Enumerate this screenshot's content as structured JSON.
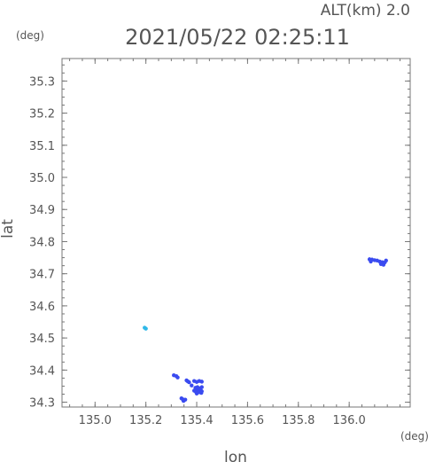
{
  "header": {
    "alt_label": "ALT(km) 2.0",
    "timestamp": "2021/05/22 02:25:11",
    "y_unit": "(deg)",
    "x_unit": "(deg)"
  },
  "chart_data": {
    "type": "scatter",
    "xlabel": "lon",
    "ylabel": "lat",
    "xlim": [
      134.87,
      136.24
    ],
    "ylim": [
      34.285,
      35.37
    ],
    "x_ticks": [
      "135.0",
      "135.2",
      "135.4",
      "135.6",
      "135.8",
      "136.0"
    ],
    "y_ticks": [
      "34.3",
      "34.4",
      "34.5",
      "34.6",
      "34.7",
      "34.8",
      "34.9",
      "35.0",
      "35.1",
      "35.2",
      "35.3"
    ],
    "grid": false,
    "colors": {
      "axis": "#777777",
      "text": "#555555",
      "points": "#3a4bf0",
      "highlight": "#2fb8e8"
    },
    "series": [
      {
        "color": "#3a4bf0",
        "points": [
          [
            136.08,
            34.745
          ],
          [
            136.09,
            34.744
          ],
          [
            136.1,
            34.742
          ],
          [
            136.11,
            34.741
          ],
          [
            136.12,
            34.738
          ],
          [
            136.13,
            34.736
          ],
          [
            136.14,
            34.735
          ],
          [
            136.125,
            34.73
          ],
          [
            136.135,
            34.728
          ],
          [
            136.085,
            34.738
          ],
          [
            136.145,
            34.741
          ],
          [
            135.31,
            34.384
          ],
          [
            135.32,
            34.381
          ],
          [
            135.325,
            34.377
          ],
          [
            135.36,
            34.368
          ],
          [
            135.365,
            34.365
          ],
          [
            135.37,
            34.362
          ],
          [
            135.39,
            34.366
          ],
          [
            135.4,
            34.363
          ],
          [
            135.41,
            34.366
          ],
          [
            135.42,
            34.364
          ],
          [
            135.38,
            34.352
          ],
          [
            135.395,
            34.345
          ],
          [
            135.4,
            34.341
          ],
          [
            135.405,
            34.338
          ],
          [
            135.41,
            34.336
          ],
          [
            135.415,
            34.339
          ],
          [
            135.42,
            34.334
          ],
          [
            135.397,
            34.332
          ],
          [
            135.408,
            34.331
          ],
          [
            135.418,
            34.329
          ],
          [
            135.4,
            34.327
          ],
          [
            135.412,
            34.343
          ],
          [
            135.403,
            34.347
          ],
          [
            135.42,
            34.347
          ],
          [
            135.39,
            34.336
          ],
          [
            135.34,
            34.312
          ],
          [
            135.345,
            34.309
          ],
          [
            135.35,
            34.306
          ],
          [
            135.355,
            34.308
          ],
          [
            135.348,
            34.304
          ]
        ]
      },
      {
        "color": "#2fb8e8",
        "points": [
          [
            135.195,
            34.532
          ],
          [
            135.2,
            34.529
          ]
        ]
      }
    ]
  }
}
